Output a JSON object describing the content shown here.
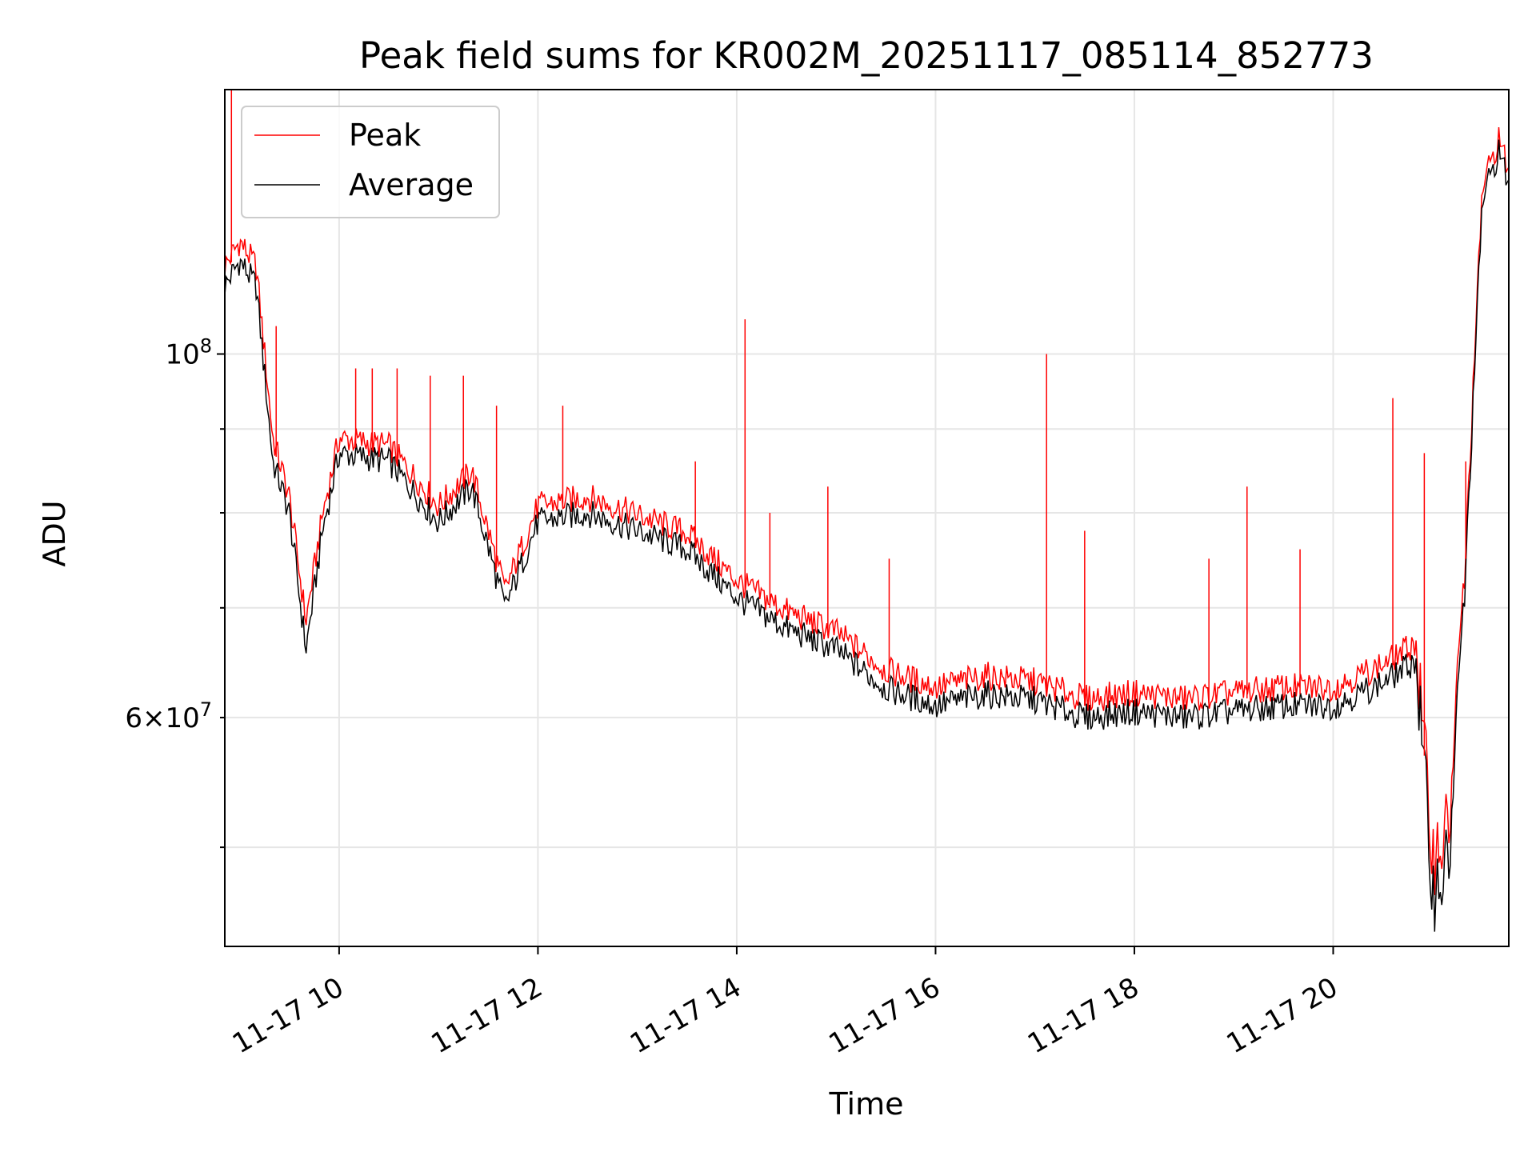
{
  "chart_data": {
    "type": "line",
    "title": "Peak field sums for KR002M_20251117_085114_852773",
    "xlabel": "Time",
    "ylabel": "ADU",
    "yscale": "log",
    "xlim": [
      "2025-11-17 08:51",
      "2025-11-17 21:46"
    ],
    "ylim": [
      43500000,
      145000000
    ],
    "grid": true,
    "legend_position": "top-left",
    "x_tick_labels": [
      "11-17 10",
      "11-17 12",
      "11-17 14",
      "11-17 16",
      "11-17 18",
      "11-17 20"
    ],
    "y_tick_labels": [
      {
        "base": "10",
        "exp": "8",
        "value": 100000000
      },
      {
        "mant": "6",
        "base": "10",
        "exp": "7",
        "value": 60000000
      }
    ],
    "x": [
      "2025-11-17 08:51",
      "2025-11-17 09:00",
      "2025-11-17 09:10",
      "2025-11-17 09:20",
      "2025-11-17 09:30",
      "2025-11-17 09:40",
      "2025-11-17 09:50",
      "2025-11-17 10:00",
      "2025-11-17 10:30",
      "2025-11-17 11:00",
      "2025-11-17 11:20",
      "2025-11-17 11:40",
      "2025-11-17 12:00",
      "2025-11-17 12:30",
      "2025-11-17 13:00",
      "2025-11-17 13:30",
      "2025-11-17 14:00",
      "2025-11-17 14:30",
      "2025-11-17 15:00",
      "2025-11-17 15:30",
      "2025-11-17 16:00",
      "2025-11-17 16:30",
      "2025-11-17 17:00",
      "2025-11-17 17:30",
      "2025-11-17 18:00",
      "2025-11-17 18:30",
      "2025-11-17 19:00",
      "2025-11-17 19:30",
      "2025-11-17 20:00",
      "2025-11-17 20:30",
      "2025-11-17 20:50",
      "2025-11-17 21:00",
      "2025-11-17 21:10",
      "2025-11-17 21:20",
      "2025-11-17 21:30",
      "2025-11-17 21:40",
      "2025-11-17 21:46"
    ],
    "series": [
      {
        "name": "Peak",
        "color": "#ff0000",
        "values": [
          112000000,
          116000000,
          112000000,
          88000000,
          81000000,
          68000000,
          79000000,
          88000000,
          87000000,
          80000000,
          84000000,
          71000000,
          80000000,
          81000000,
          79000000,
          77000000,
          72000000,
          69000000,
          67000000,
          63500000,
          62000000,
          63000000,
          62500000,
          61000000,
          61500000,
          61000000,
          61500000,
          62000000,
          62000000,
          64000000,
          66000000,
          49000000,
          51000000,
          75000000,
          125000000,
          134000000,
          128000000
        ]
      },
      {
        "name": "Average",
        "color": "#000000",
        "values": [
          110000000,
          114000000,
          110000000,
          86000000,
          80000000,
          66000000,
          78000000,
          87000000,
          86000000,
          79000000,
          83000000,
          70000000,
          79000000,
          80000000,
          78000000,
          76000000,
          71000000,
          68000000,
          66000000,
          62500000,
          61000000,
          62000000,
          61500000,
          60000000,
          60500000,
          60000000,
          60500000,
          61000000,
          61000000,
          63000000,
          65000000,
          47000000,
          49000000,
          74000000,
          124000000,
          133000000,
          127000000
        ]
      }
    ],
    "spikes": [
      {
        "x": "2025-11-17 08:55",
        "value": 145000000
      },
      {
        "x": "2025-11-17 09:22",
        "value": 104000000
      },
      {
        "x": "2025-11-17 10:10",
        "value": 98000000
      },
      {
        "x": "2025-11-17 10:20",
        "value": 98000000
      },
      {
        "x": "2025-11-17 10:35",
        "value": 98000000
      },
      {
        "x": "2025-11-17 10:55",
        "value": 97000000
      },
      {
        "x": "2025-11-17 11:15",
        "value": 97000000
      },
      {
        "x": "2025-11-17 11:35",
        "value": 93000000
      },
      {
        "x": "2025-11-17 12:15",
        "value": 93000000
      },
      {
        "x": "2025-11-17 13:35",
        "value": 86000000
      },
      {
        "x": "2025-11-17 14:05",
        "value": 105000000
      },
      {
        "x": "2025-11-17 14:20",
        "value": 80000000
      },
      {
        "x": "2025-11-17 14:55",
        "value": 83000000
      },
      {
        "x": "2025-11-17 15:32",
        "value": 75000000
      },
      {
        "x": "2025-11-17 17:07",
        "value": 100000000
      },
      {
        "x": "2025-11-17 17:30",
        "value": 78000000
      },
      {
        "x": "2025-11-17 18:45",
        "value": 75000000
      },
      {
        "x": "2025-11-17 19:08",
        "value": 83000000
      },
      {
        "x": "2025-11-17 19:40",
        "value": 76000000
      },
      {
        "x": "2025-11-17 20:36",
        "value": 94000000
      },
      {
        "x": "2025-11-17 20:55",
        "value": 87000000
      },
      {
        "x": "2025-11-17 21:20",
        "value": 86000000
      }
    ]
  }
}
